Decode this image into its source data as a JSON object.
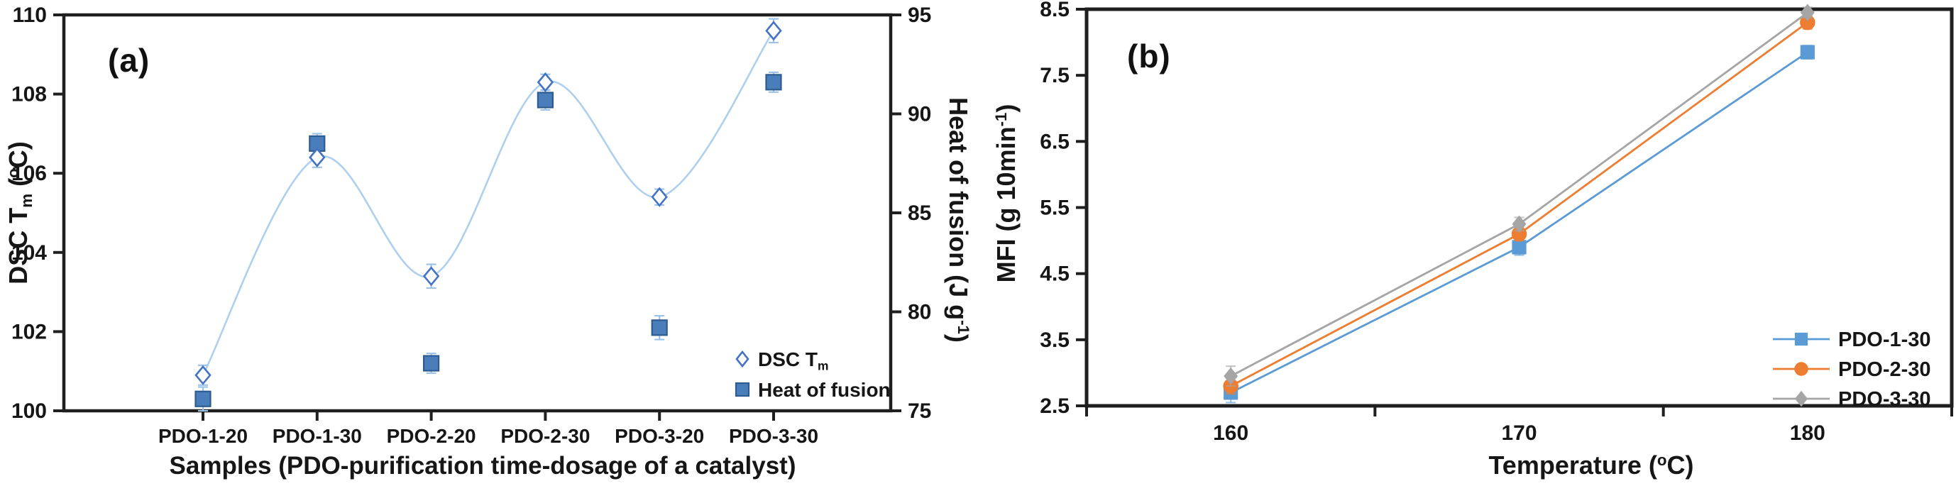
{
  "figure": {
    "background": "#ffffff",
    "axis_color": "#1f1f1f"
  },
  "chart_data": [
    {
      "type": "line",
      "panel_label": "(a)",
      "categories": [
        "PDO-1-20",
        "PDO-1-30",
        "PDO-2-20",
        "PDO-2-30",
        "PDO-3-20",
        "PDO-3-30"
      ],
      "xlabel_rich": [
        {
          "t": "Samples (PDO-purification time-dosage of a catalyst)"
        }
      ],
      "ylabel_left_rich": [
        {
          "t": "DSC T"
        },
        {
          "t": "m",
          "style": "sub"
        },
        {
          "t": " ("
        },
        {
          "t": "o",
          "style": "sup"
        },
        {
          "t": "C)"
        }
      ],
      "ylabel_right_rich": [
        {
          "t": "Heat of fusion (J g"
        },
        {
          "t": "-1",
          "style": "sup"
        },
        {
          "t": ")"
        }
      ],
      "y_left": {
        "min": 100,
        "max": 110,
        "step": 2,
        "ticks": [
          "100",
          "102",
          "104",
          "106",
          "108",
          "110"
        ]
      },
      "y_right": {
        "min": 75,
        "max": 95,
        "step": 5,
        "ticks": [
          "75",
          "80",
          "85",
          "90",
          "95"
        ]
      },
      "grid": false,
      "legend_position": "inside-bottom-right",
      "series": [
        {
          "name_rich": [
            {
              "t": "DSC T"
            },
            {
              "t": "m",
              "style": "sub"
            }
          ],
          "axis": "left",
          "marker": "diamond-open",
          "smooth_line": true,
          "line_color": "#aecfee",
          "marker_color": "#4472c4",
          "errorbar_color": "#9dc3e6",
          "values": [
            100.9,
            106.4,
            103.4,
            108.3,
            105.4,
            109.6
          ],
          "errors": [
            0.25,
            0.25,
            0.3,
            0.2,
            0.2,
            0.3
          ]
        },
        {
          "name_rich": [
            {
              "t": "Heat of fusion"
            }
          ],
          "axis": "right",
          "marker": "square",
          "smooth_line": false,
          "line_color": "none",
          "marker_color": "#4a7ebb",
          "marker_stroke": "#2e5c8f",
          "errorbar_color": "#9dc3e6",
          "values": [
            75.6,
            88.5,
            77.4,
            90.7,
            79.2,
            91.6
          ],
          "errors": [
            0.6,
            0.5,
            0.5,
            0.5,
            0.6,
            0.5
          ]
        }
      ]
    },
    {
      "type": "line",
      "panel_label": "(b)",
      "categories": [
        "160",
        "170",
        "180"
      ],
      "xlabel_rich": [
        {
          "t": "Temperature ("
        },
        {
          "t": "o",
          "style": "sup"
        },
        {
          "t": "C)"
        }
      ],
      "ylabel_rich": [
        {
          "t": "MFI (g 10min"
        },
        {
          "t": "-1",
          "style": "sup"
        },
        {
          "t": ")"
        }
      ],
      "y": {
        "min": 2.5,
        "max": 8.5,
        "step": 1,
        "ticks": [
          "2.5",
          "3.5",
          "4.5",
          "5.5",
          "6.5",
          "7.5",
          "8.5"
        ]
      },
      "grid": false,
      "legend_position": "inside-bottom-right",
      "series": [
        {
          "name": "PDO-1-30",
          "marker": "square",
          "color": "#5b9bd5",
          "values": [
            2.7,
            4.9,
            7.85
          ],
          "errors": [
            0.15,
            0.12,
            0.1
          ]
        },
        {
          "name": "PDO-2-30",
          "marker": "circle",
          "color": "#ed7d31",
          "values": [
            2.8,
            5.1,
            8.3
          ],
          "errors": [
            0.12,
            0.1,
            0.1
          ]
        },
        {
          "name": "PDO-3-30",
          "marker": "diamond",
          "color": "#a5a5a5",
          "values": [
            2.95,
            5.25,
            8.45
          ],
          "errors": [
            0.15,
            0.1,
            0.08
          ]
        }
      ]
    }
  ]
}
